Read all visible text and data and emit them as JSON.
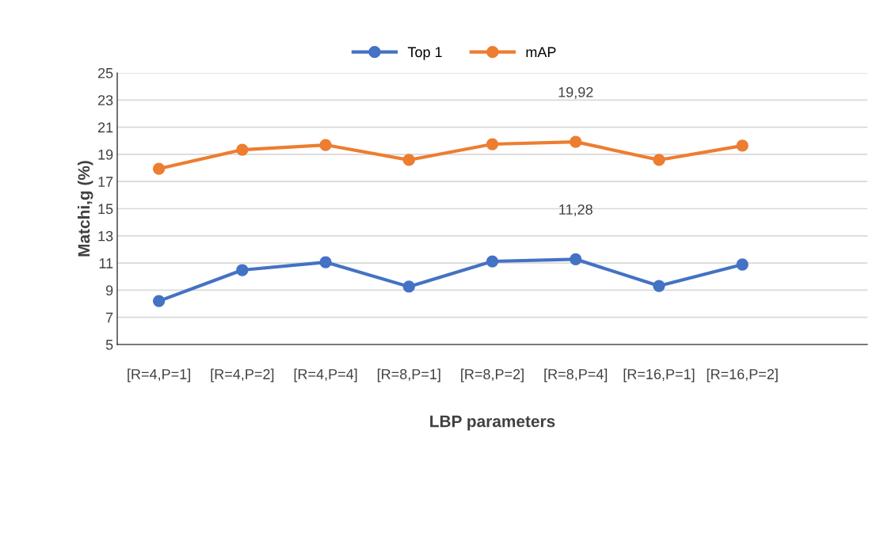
{
  "chart_data": {
    "type": "line",
    "xlabel": "LBP parameters",
    "ylabel": "Matchi,g (%)",
    "categories": [
      "[R=4,P=1]",
      "[R=4,P=2]",
      "[R=4,P=4]",
      "[R=8,P=1]",
      "[R=8,P=2]",
      "[R=8,P=4]",
      "[R=16,P=1]",
      "[R=16,P=2]",
      null
    ],
    "series": [
      {
        "name": "Top 1",
        "color": "#4472c4",
        "values": [
          8.2,
          10.48,
          11.06,
          9.26,
          11.12,
          11.28,
          9.31,
          10.89,
          null
        ],
        "value_labels": [
          null,
          null,
          null,
          null,
          null,
          "11,28",
          null,
          null,
          null
        ]
      },
      {
        "name": "mAP",
        "color": "#ed7d31",
        "values": [
          17.94,
          19.34,
          19.69,
          18.59,
          19.75,
          19.92,
          18.59,
          19.64,
          null
        ],
        "value_labels": [
          null,
          null,
          null,
          null,
          null,
          "19,92",
          null,
          null,
          null
        ]
      }
    ],
    "ylim": [
      5,
      25
    ],
    "yticks": [
      5,
      7,
      9,
      11,
      13,
      15,
      17,
      19,
      21,
      23,
      25
    ],
    "grid": "y",
    "legend": "top",
    "marker": "circle",
    "line_style": "solid"
  }
}
